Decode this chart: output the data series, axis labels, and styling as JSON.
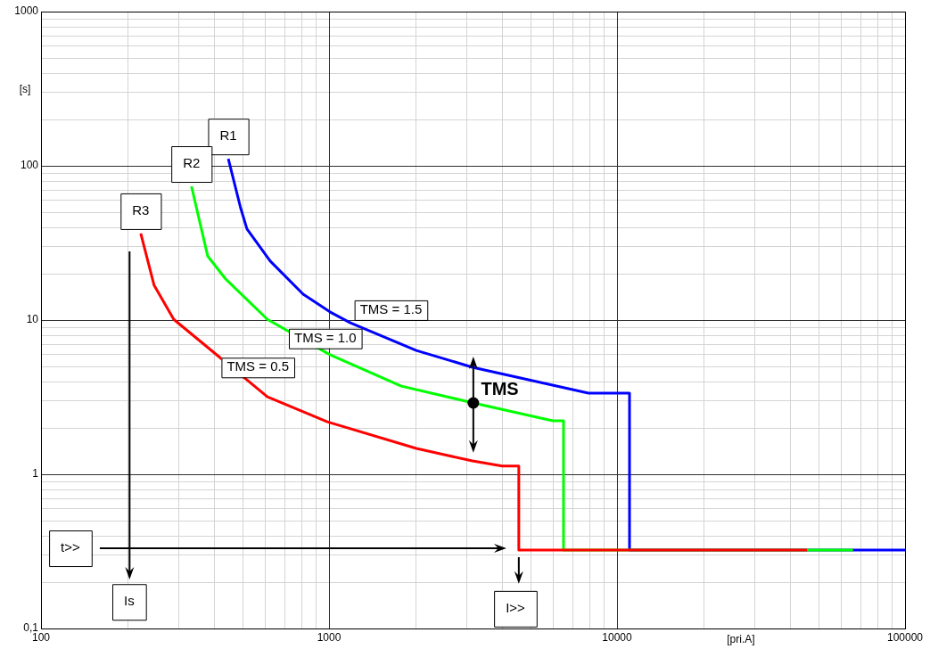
{
  "chart_data": {
    "type": "line",
    "xlabel": "[pri.A]",
    "ylabel": "[s]",
    "log": "xy",
    "xlim": [
      100,
      100000
    ],
    "ylim": [
      0.1,
      1000
    ],
    "xticks": [
      100,
      1000,
      10000,
      100000
    ],
    "yticks": [
      {
        "value": 0.1,
        "label": "0,1"
      },
      1,
      10,
      100,
      1000
    ],
    "grid": true,
    "legend": false,
    "marker": "none",
    "line_style": "solid",
    "series": [
      {
        "name": "R1",
        "color": "#0000ff",
        "x": [
          447,
          493,
          519,
          625,
          813,
          1007,
          1186,
          2009,
          3148,
          7960,
          11050,
          11050,
          100000
        ],
        "values": [
          111,
          53.5,
          38.9,
          24.1,
          14.7,
          11.3,
          9.6,
          6.35,
          4.94,
          3.36,
          3.36,
          0.323,
          0.323
        ]
      },
      {
        "name": "R2",
        "color": "#00ff00",
        "x": [
          333,
          379,
          437,
          611,
          1007,
          1782,
          3170,
          5980,
          6520,
          6520,
          66000
        ],
        "values": [
          73.6,
          26,
          18.5,
          10.1,
          5.96,
          3.73,
          2.9,
          2.22,
          2.22,
          0.323,
          0.323
        ]
      },
      {
        "name": "R3",
        "color": "#ff0000",
        "x": [
          222,
          247,
          289,
          611,
          986,
          2009,
          3148,
          3990,
          4560,
          4560,
          45700
        ],
        "values": [
          36.4,
          16.8,
          10.1,
          3.18,
          2.19,
          1.47,
          1.22,
          1.13,
          1.13,
          0.323,
          0.323
        ]
      }
    ],
    "annotations": [
      "TMS = 1.5",
      "TMS = 1.0",
      "TMS = 0.5",
      "TMS",
      "t>>",
      "Is",
      "I>>"
    ]
  }
}
